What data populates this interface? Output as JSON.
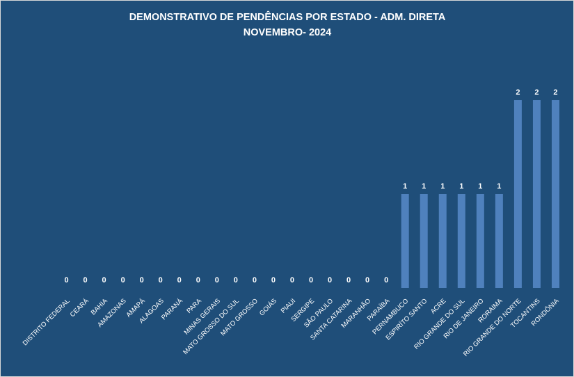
{
  "chart_data": {
    "type": "bar",
    "title": "DEMONSTRATIVO DE PENDÊNCIAS POR  ESTADO - ADM. DIRETA",
    "subtitle": "NOVEMBRO- 2024",
    "categories": [
      "DISTRITO FEDERAL",
      "CEARÁ",
      "BAHIA",
      "AMAZONAS",
      "AMAPÁ",
      "ALAGOAS",
      "PARANÁ",
      "PARA",
      "MINAS GERAIS",
      "MATO GROSSO DO SUL",
      "MATO GROSSO",
      "GOIÁS",
      "PIAUI",
      "SERGIPE",
      "SÃO PAULO",
      "SANTA CATARINA",
      "MARANHÃO",
      "PARAÍBA",
      "PERNAMBUCO",
      "ESPIRÍTO SANTO",
      "ACRE",
      "RIO GRANDE DO SUL",
      "RIO DE JANEIRO",
      "RORAIMA",
      "RIO GRANDE DO NORTE",
      "TOCANTINS",
      "RONDÔNIA"
    ],
    "values": [
      0,
      0,
      0,
      0,
      0,
      0,
      0,
      0,
      0,
      0,
      0,
      0,
      0,
      0,
      0,
      0,
      0,
      0,
      1,
      1,
      1,
      1,
      1,
      1,
      2,
      2,
      2
    ],
    "ylim": [
      0,
      2
    ],
    "grid": false,
    "legend": "none",
    "bar_color": "#4f81bd",
    "background_color": "#1f4e79",
    "text_color": "#ffffff"
  }
}
